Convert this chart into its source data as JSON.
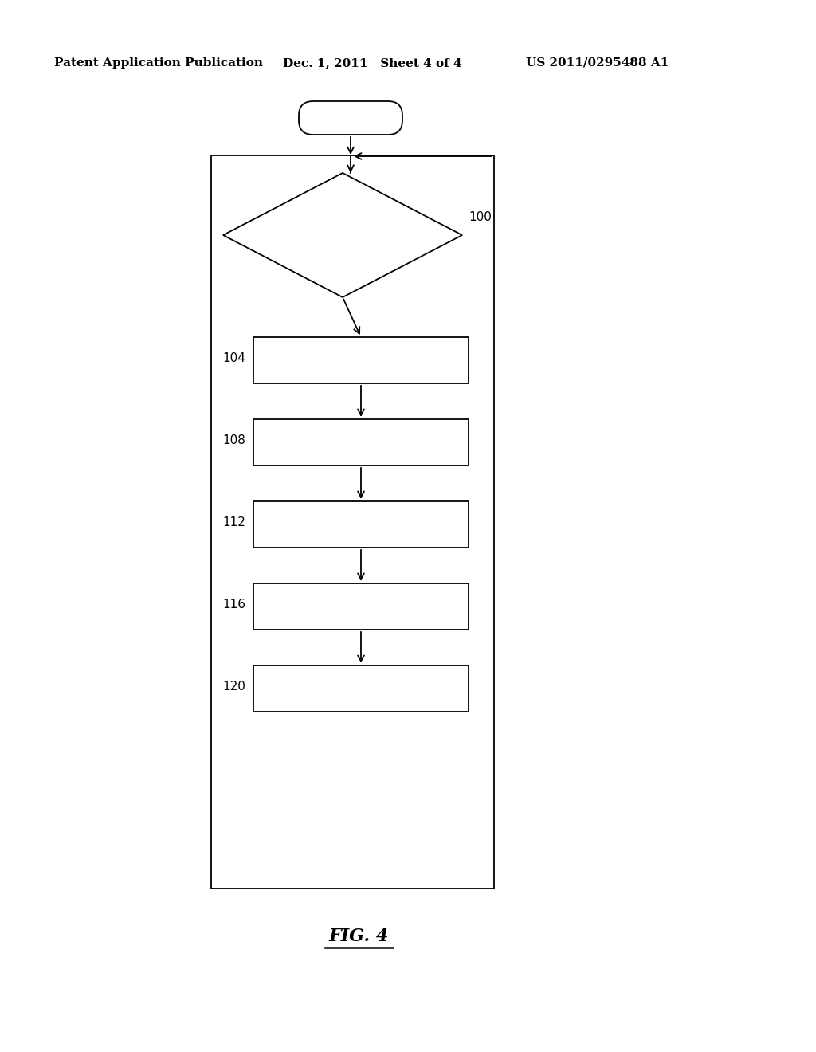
{
  "header_left": "Patent Application Publication",
  "header_mid": "Dec. 1, 2011   Sheet 4 of 4",
  "header_right": "US 2011/0295488 A1",
  "fig_label": "FIG. 4",
  "background_color": "#ffffff",
  "line_color": "#000000",
  "box_labels": [
    "104",
    "108",
    "112",
    "116",
    "120"
  ],
  "diamond_label": "100",
  "header_fontsize": 11,
  "label_fontsize": 11,
  "fig_label_fontsize": 16
}
